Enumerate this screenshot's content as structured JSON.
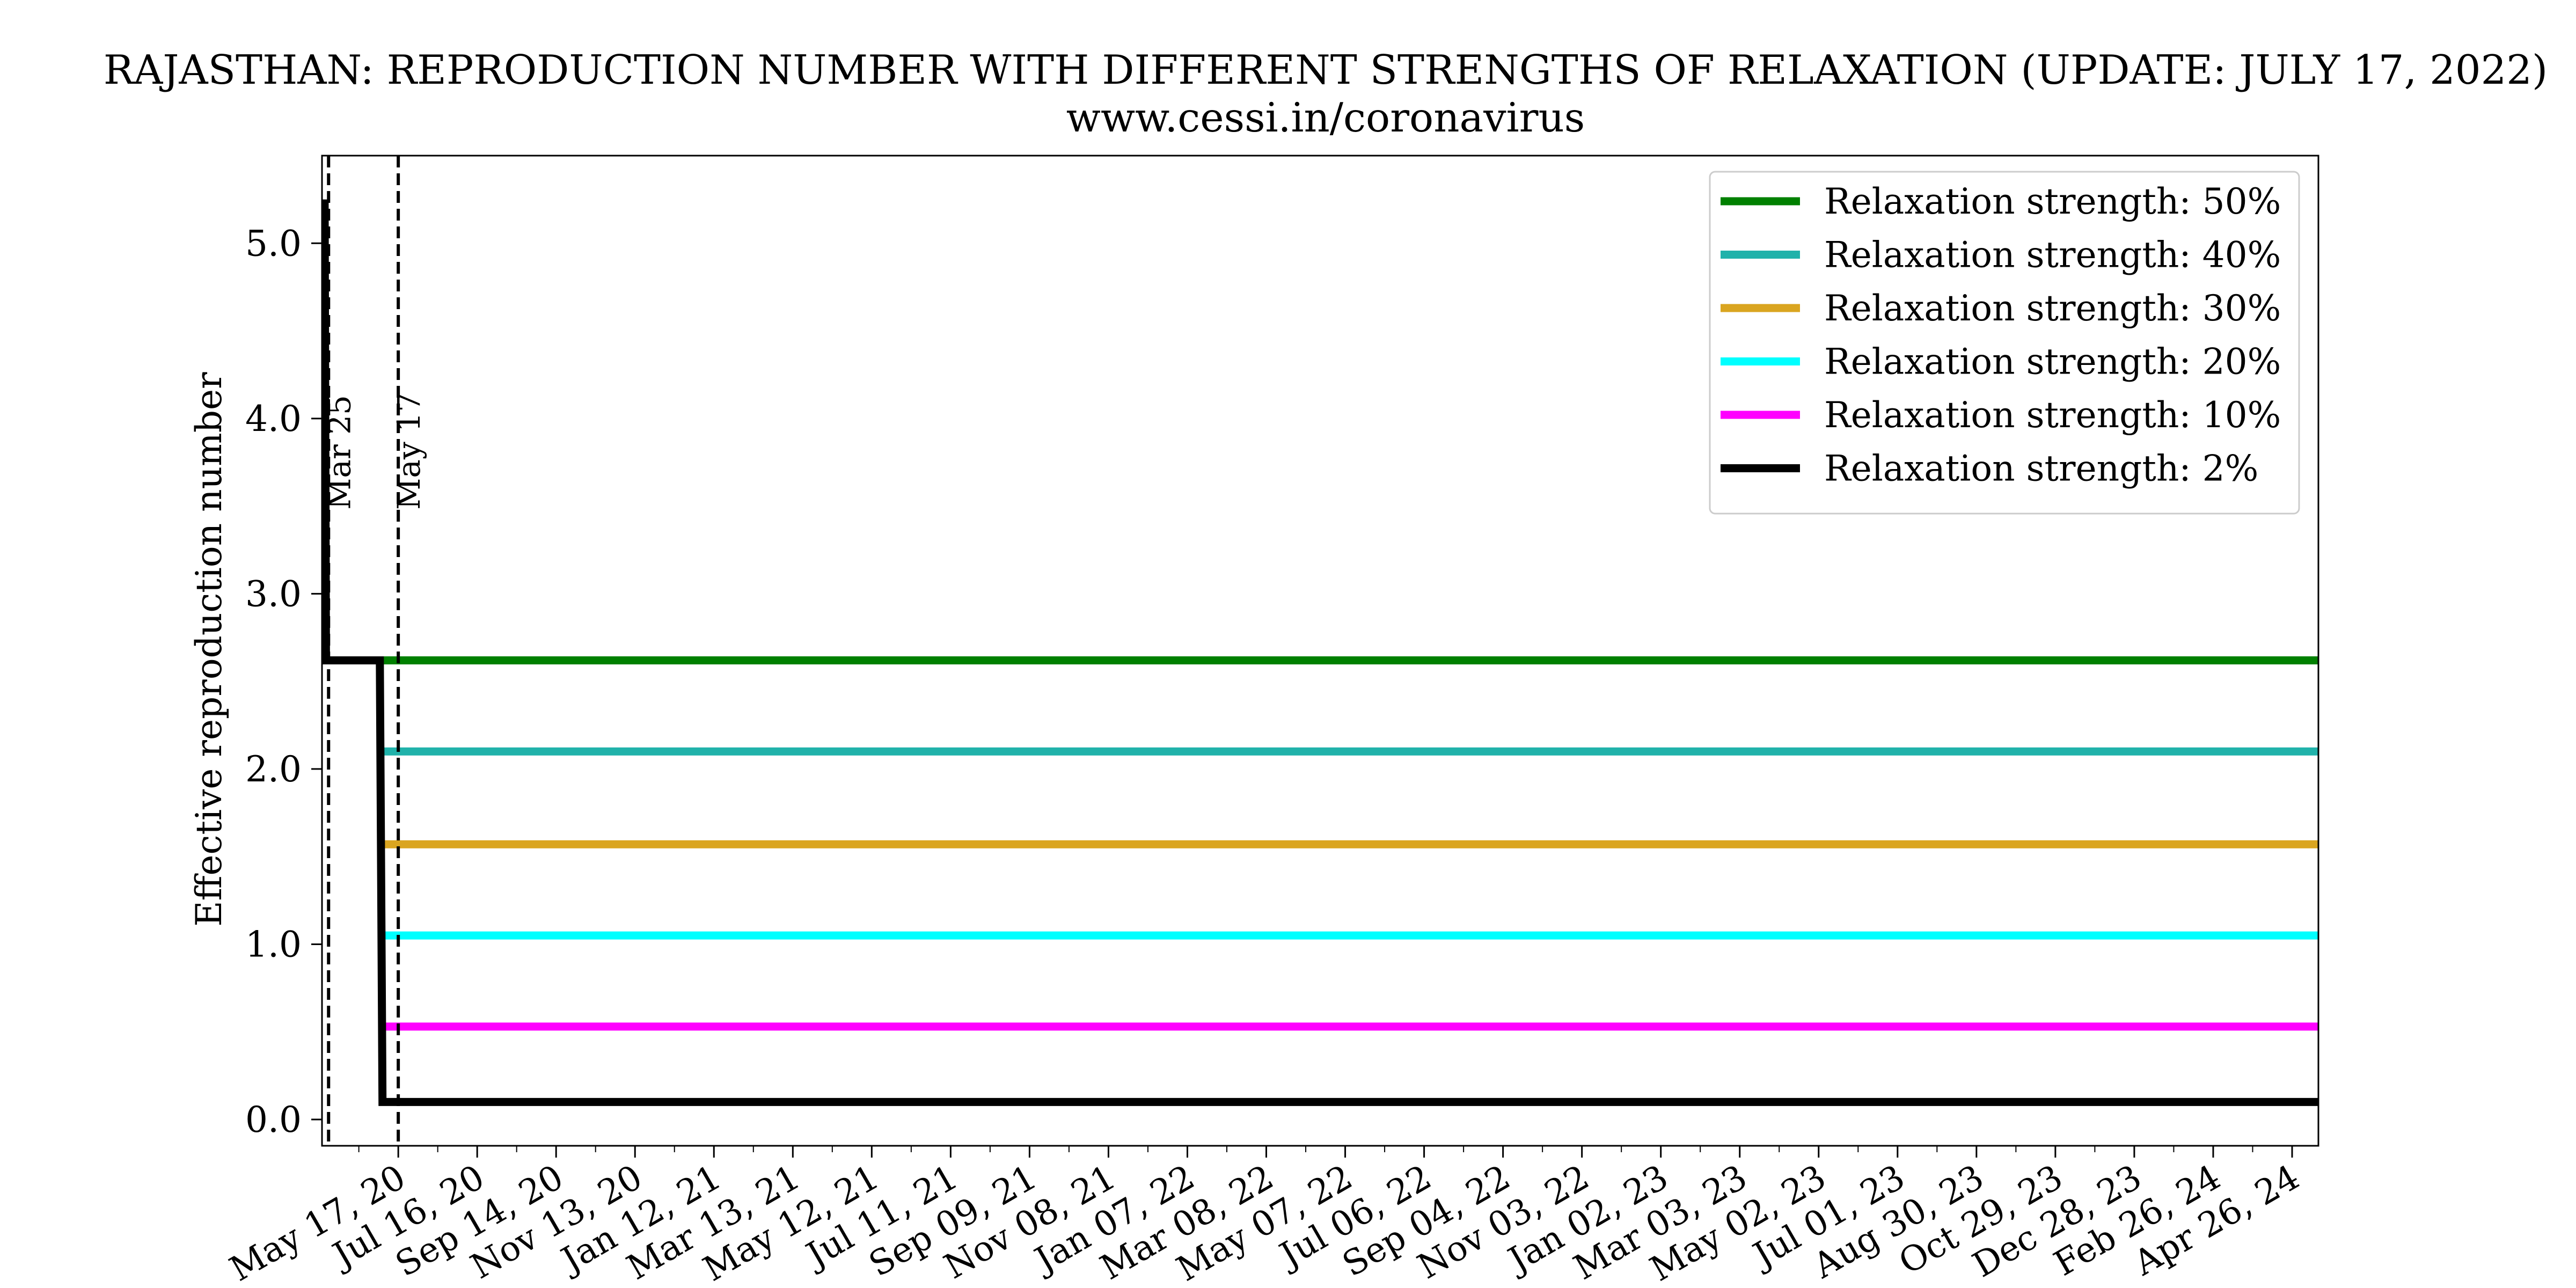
{
  "chart_data": {
    "type": "line",
    "title": "RAJASTHAN: REPRODUCTION NUMBER WITH DIFFERENT STRENGTHS OF RELAXATION (UPDATE: JULY 17, 2022)",
    "subtitle": "www.cessi.in/coronavirus",
    "xlabel": "",
    "ylabel": "Effective reproduction number",
    "xlim": [
      "2020-03-20",
      "2024-05-16"
    ],
    "ylim": [
      -0.15,
      5.5
    ],
    "y_ticks": [
      0,
      1,
      2,
      3,
      4,
      5
    ],
    "y_tick_labels": [
      "0.0",
      "1.0",
      "2.0",
      "3.0",
      "4.0",
      "5.0"
    ],
    "x_ticks": [
      "2020-05-17",
      "2020-07-16",
      "2020-09-14",
      "2020-11-13",
      "2021-01-12",
      "2021-03-13",
      "2021-05-12",
      "2021-07-11",
      "2021-09-09",
      "2021-11-08",
      "2022-01-07",
      "2022-03-08",
      "2022-05-07",
      "2022-07-06",
      "2022-09-04",
      "2022-11-03",
      "2023-01-02",
      "2023-03-03",
      "2023-05-02",
      "2023-07-01",
      "2023-08-30",
      "2023-10-29",
      "2023-12-28",
      "2024-02-26",
      "2024-04-26"
    ],
    "x_tick_labels": [
      "May 17, 20",
      "Jul 16, 20",
      "Sep 14, 20",
      "Nov 13, 20",
      "Jan 12, 21",
      "Mar 13, 21",
      "May 12, 21",
      "Jul 11, 21",
      "Sep 09, 21",
      "Nov 08, 21",
      "Jan 07, 22",
      "Mar 08, 22",
      "May 07, 22",
      "Jul 06, 22",
      "Sep 04, 22",
      "Nov 03, 22",
      "Jan 02, 23",
      "Mar 03, 23",
      "May 02, 23",
      "Jul 01, 23",
      "Aug 30, 23",
      "Oct 29, 23",
      "Dec 28, 23",
      "Feb 26, 24",
      "Apr 26, 24"
    ],
    "minor_x_ticks": [
      "2020-04-17",
      "2020-06-16",
      "2020-08-15",
      "2020-10-14",
      "2020-12-13",
      "2021-02-11",
      "2021-04-12",
      "2021-06-11",
      "2021-08-10",
      "2021-10-09",
      "2021-12-08",
      "2022-02-06",
      "2022-04-07",
      "2022-06-06",
      "2022-08-05",
      "2022-10-04",
      "2022-12-03",
      "2023-02-01",
      "2023-04-02",
      "2023-06-01",
      "2023-07-31",
      "2023-09-29",
      "2023-11-28",
      "2024-01-27",
      "2024-03-27"
    ],
    "vlines": [
      {
        "x": "2020-03-25",
        "label": "Mar 25"
      },
      {
        "x": "2020-05-17",
        "label": "May 17"
      }
    ],
    "legend_position": "top-right",
    "series": [
      {
        "name": "Relaxation strength: 50%",
        "color": "#008000",
        "x": [
          "2020-05-04",
          "2024-05-16"
        ],
        "y": [
          2.62,
          2.62
        ]
      },
      {
        "name": "Relaxation strength: 40%",
        "color": "#20b2aa",
        "x": [
          "2020-05-05",
          "2024-05-16"
        ],
        "y": [
          2.1,
          2.1
        ]
      },
      {
        "name": "Relaxation strength: 30%",
        "color": "#daa520",
        "x": [
          "2020-05-05",
          "2024-05-16"
        ],
        "y": [
          1.57,
          1.57
        ]
      },
      {
        "name": "Relaxation strength: 20%",
        "color": "#00ffff",
        "x": [
          "2020-05-05",
          "2024-05-16"
        ],
        "y": [
          1.05,
          1.05
        ]
      },
      {
        "name": "Relaxation strength: 10%",
        "color": "#ff00ff",
        "x": [
          "2020-05-05",
          "2024-05-16"
        ],
        "y": [
          0.53,
          0.53
        ]
      },
      {
        "name": "Relaxation strength: 2%",
        "color": "#000000",
        "x": [
          "2020-03-22",
          "2020-03-23",
          "2020-03-25",
          "2020-05-03",
          "2020-05-05",
          "2024-05-16"
        ],
        "y": [
          5.25,
          2.62,
          2.62,
          2.62,
          0.1,
          0.1
        ]
      }
    ]
  }
}
